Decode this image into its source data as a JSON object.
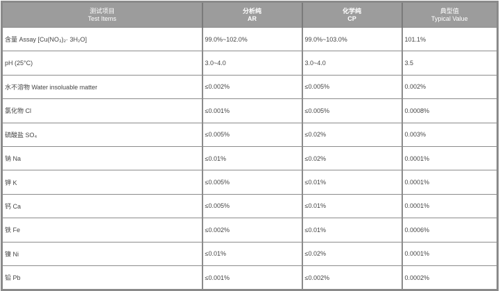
{
  "headers": [
    {
      "cn": "测试项目",
      "en": "Test Items"
    },
    {
      "cn": "分析纯",
      "en": "AR"
    },
    {
      "cn": "化学纯",
      "en": "CP"
    },
    {
      "cn": "典型值",
      "en": "Typical Value"
    }
  ],
  "rows": [
    {
      "item": "含量 Assay [Cu(NO₃)₂· 3H₂O]",
      "ar": "99.0%~102.0%",
      "cp": "99.0%~103.0%",
      "typical": "101.1%"
    },
    {
      "item": "pH (25°C)",
      "ar": "3.0~4.0",
      "cp": "3.0~4.0",
      "typical": "3.5"
    },
    {
      "item": "水不溶物 Water insoluable matter",
      "ar": "≤0.002%",
      "cp": "≤0.005%",
      "typical": "0.002%"
    },
    {
      "item": "氯化物 Cl",
      "ar": "≤0.001%",
      "cp": "≤0.005%",
      "typical": "0.0008%"
    },
    {
      "item": "硫酸盐 SO₄",
      "ar": "≤0.005%",
      "cp": "≤0.02%",
      "typical": "0.003%"
    },
    {
      "item": "钠 Na",
      "ar": "≤0.01%",
      "cp": "≤0.02%",
      "typical": "0.0001%"
    },
    {
      "item": "钾 K",
      "ar": "≤0.005%",
      "cp": "≤0.01%",
      "typical": "0.0001%"
    },
    {
      "item": "钙 Ca",
      "ar": "≤0.005%",
      "cp": "≤0.01%",
      "typical": "0.0001%"
    },
    {
      "item": "铁 Fe",
      "ar": "≤0.002%",
      "cp": "≤0.01%",
      "typical": "0.0006%"
    },
    {
      "item": "镍 Ni",
      "ar": "≤0.01%",
      "cp": "≤0.02%",
      "typical": "0.0001%"
    },
    {
      "item": "铅 Pb",
      "ar": "≤0.001%",
      "cp": "≤0.002%",
      "typical": "0.0002%"
    }
  ]
}
